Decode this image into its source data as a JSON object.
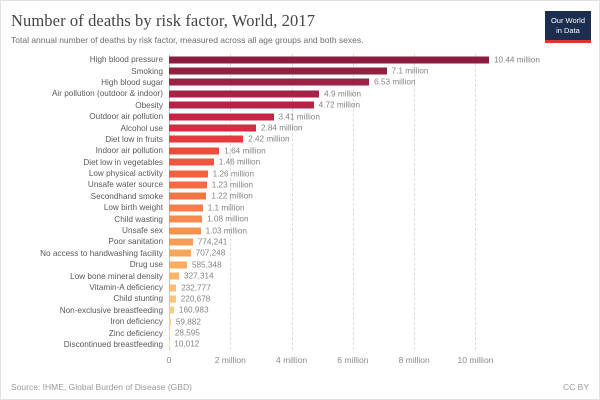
{
  "header": {
    "logo": {
      "line1": "Our World",
      "line2": "in Data",
      "bg_color": "#1b2e4f",
      "accent_color": "#d6392c"
    }
  },
  "chart_data": {
    "type": "bar",
    "orientation": "horizontal",
    "title": "Number of deaths by risk factor, World, 2017",
    "subtitle": "Total annual number of deaths by risk factor, measured across all age groups and both sexes.",
    "xlabel": "",
    "ylabel": "",
    "grid": "vertical-dashed",
    "legend": false,
    "xlim": [
      0,
      13770000
    ],
    "categories": [
      "High blood pressure",
      "Smoking",
      "High blood sugar",
      "Air pollution (outdoor & indoor)",
      "Obesity",
      "Outdoor air pollution",
      "Alcohol use",
      "Diet low in fruits",
      "Indoor air pollution",
      "Diet low in vegetables",
      "Low physical activity",
      "Unsafe water source",
      "Secondhand smoke",
      "Low birth weight",
      "Child wasting",
      "Unsafe sex",
      "Poor sanitation",
      "No access to handwashing facility",
      "Drug use",
      "Low bone mineral density",
      "Vitamin-A deficiency",
      "Child stunting",
      "Non-exclusive breastfeeding",
      "Iron deficiency",
      "Zinc deficiency",
      "Discontinued breastfeeding"
    ],
    "values": [
      10440000,
      7100000,
      6530000,
      4900000,
      4720000,
      3410000,
      2840000,
      2420000,
      1640000,
      1460000,
      1260000,
      1230000,
      1220000,
      1100000,
      1080000,
      1030000,
      774241,
      707248,
      585348,
      327314,
      232777,
      220678,
      160983,
      59882,
      28595,
      10012
    ],
    "value_labels": [
      "10.44 million",
      "7.1 million",
      "6.53 million",
      "4.9 million",
      "4.72 million",
      "3.41 million",
      "2.84 million",
      "2.42 million",
      "1.64 million",
      "1.46 million",
      "1.26 million",
      "1.23 million",
      "1.22 million",
      "1.1 million",
      "1.08 million",
      "1.03 million",
      "774,241",
      "707,248",
      "585,348",
      "327,314",
      "232,777",
      "220,678",
      "160,983",
      "59,882",
      "28,595",
      "10,012"
    ],
    "bar_colors": [
      "#8B1D3E",
      "#92203F",
      "#9B2242",
      "#A62345",
      "#B22347",
      "#C62447",
      "#D62B42",
      "#E43A3C",
      "#EC4C3B",
      "#EE573E",
      "#F06140",
      "#F26B43",
      "#F37546",
      "#F57F49",
      "#F6894D",
      "#F79351",
      "#F89C55",
      "#F9A55A",
      "#FAAD61",
      "#FBB569",
      "#FBBD72",
      "#FCC57C",
      "#FCCD87",
      "#FDD593",
      "#FDDD9F",
      "#FEE5AC"
    ],
    "x_ticks": [
      {
        "label": "0",
        "value": 0
      },
      {
        "label": "2 million",
        "value": 2000000
      },
      {
        "label": "4 million",
        "value": 4000000
      },
      {
        "label": "6 million",
        "value": 6000000
      },
      {
        "label": "8 million",
        "value": 8000000
      },
      {
        "label": "10 million",
        "value": 10000000
      }
    ]
  },
  "footer": {
    "source": "Source: IHME, Global Burden of Disease (GBD)",
    "license": "CC BY"
  }
}
